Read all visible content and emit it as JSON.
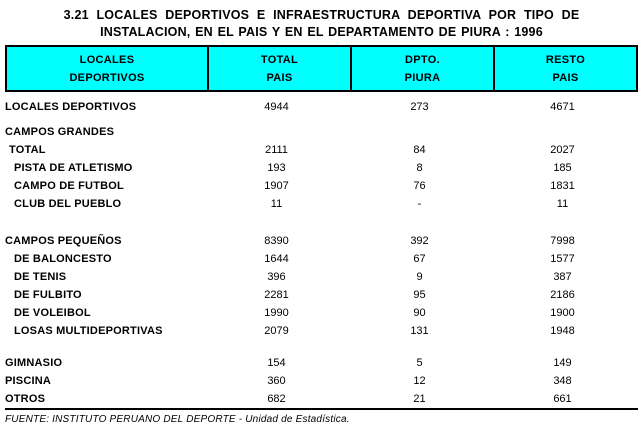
{
  "title": {
    "line1": "3.21 LOCALES DEPORTIVOS E INFRAESTRUCTURA DEPORTIVA POR TIPO DE",
    "line2": "INSTALACION, EN EL PAIS Y EN EL DEPARTAMENTO DE PIURA : 1996"
  },
  "colors": {
    "header_bg": "#00FFFF",
    "border": "#000000",
    "text": "#000000",
    "page_bg": "#FFFFFF"
  },
  "table": {
    "header": {
      "columns": [
        {
          "line1": "LOCALES",
          "line2": "DEPORTIVOS"
        },
        {
          "line1": "TOTAL",
          "line2": "PAIS"
        },
        {
          "line1": "DPTO.",
          "line2": "PIURA"
        },
        {
          "line1": "RESTO",
          "line2": "PAIS"
        }
      ]
    },
    "rows": [
      {
        "label": "LOCALES DEPORTIVOS",
        "indent": 0,
        "total": "4944",
        "dpto": "273",
        "resto": "4671",
        "gap_before": 0
      },
      {
        "label": "CAMPOS GRANDES",
        "indent": 0,
        "total": "",
        "dpto": "",
        "resto": "",
        "gap_before": 7
      },
      {
        "label": "TOTAL",
        "indent": 1,
        "total": "2111",
        "dpto": "84",
        "resto": "2027",
        "gap_before": 0
      },
      {
        "label": "PISTA DE ATLETISMO",
        "indent": 2,
        "total": "193",
        "dpto": "8",
        "resto": "185",
        "gap_before": 0
      },
      {
        "label": "CAMPO DE FUTBOL",
        "indent": 2,
        "total": "1907",
        "dpto": "76",
        "resto": "1831",
        "gap_before": 0
      },
      {
        "label": "CLUB DEL PUEBLO",
        "indent": 2,
        "total": "11",
        "dpto": "-",
        "resto": "11",
        "gap_before": 0
      },
      {
        "label": "CAMPOS PEQUEÑOS",
        "indent": 0,
        "total": "8390",
        "dpto": "392",
        "resto": "7998",
        "gap_before": 19
      },
      {
        "label": "DE BALONCESTO",
        "indent": 2,
        "total": "1644",
        "dpto": "67",
        "resto": "1577",
        "gap_before": 0
      },
      {
        "label": "DE TENIS",
        "indent": 2,
        "total": "396",
        "dpto": "9",
        "resto": "387",
        "gap_before": 0
      },
      {
        "label": "DE FULBITO",
        "indent": 2,
        "total": "2281",
        "dpto": "95",
        "resto": "2186",
        "gap_before": 0
      },
      {
        "label": "DE VOLEIBOL",
        "indent": 2,
        "total": "1990",
        "dpto": "90",
        "resto": "1900",
        "gap_before": 0
      },
      {
        "label": "LOSAS MULTIDEPORTIVAS",
        "indent": 2,
        "total": "2079",
        "dpto": "131",
        "resto": "1948",
        "gap_before": 0
      },
      {
        "label": "GIMNASIO",
        "indent": 0,
        "total": "154",
        "dpto": "5",
        "resto": "149",
        "gap_before": 14
      },
      {
        "label": "PISCINA",
        "indent": 0,
        "total": "360",
        "dpto": "12",
        "resto": "348",
        "gap_before": 0
      },
      {
        "label": "OTROS",
        "indent": 0,
        "total": "682",
        "dpto": "21",
        "resto": "661",
        "gap_before": 0
      }
    ]
  },
  "footer": {
    "source": "FUENTE: INSTITUTO PERUANO DEL DEPORTE - Unidad de Estadística."
  }
}
